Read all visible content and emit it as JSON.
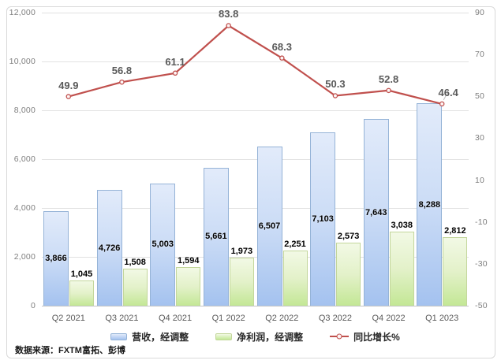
{
  "chart_data": {
    "type": "combo-bar-line",
    "title": "",
    "categories": [
      "Q2 2021",
      "Q3 2021",
      "Q4 2021",
      "Q1 2022",
      "Q2 2022",
      "Q3 2022",
      "Q4 2022",
      "Q1 2023"
    ],
    "series": [
      {
        "name": "营收，经调整",
        "type": "bar",
        "axis": "left",
        "values": [
          3866,
          4726,
          5003,
          5661,
          6507,
          7103,
          7643,
          8288
        ],
        "labels": [
          "3,866",
          "4,726",
          "5,003",
          "5,661",
          "6,507",
          "7,103",
          "7,643",
          "8,288"
        ]
      },
      {
        "name": "净利润，经调整",
        "type": "bar",
        "axis": "left",
        "values": [
          1045,
          1508,
          1594,
          1973,
          2251,
          2573,
          3038,
          2812
        ],
        "labels": [
          "1,045",
          "1,508",
          "1,594",
          "1,973",
          "2,251",
          "2,573",
          "3,038",
          "2,812"
        ]
      },
      {
        "name": "同比增长%",
        "type": "line",
        "axis": "right",
        "values": [
          49.9,
          56.8,
          61.1,
          83.8,
          68.3,
          50.3,
          52.8,
          46.4
        ],
        "labels": [
          "49.9",
          "56.8",
          "61.1",
          "83.8",
          "68.3",
          "50.3",
          "52.8",
          "46.4"
        ],
        "color": "#C0504D"
      }
    ],
    "left_axis": {
      "min": 0,
      "max": 12000,
      "step": 2000,
      "tick_labels": [
        "0",
        "2,000",
        "4,000",
        "6,000",
        "8,000",
        "10,000",
        "12,000"
      ]
    },
    "right_axis": {
      "min": -50,
      "max": 90,
      "step": 20,
      "tick_labels": [
        "-50",
        "-30",
        "-10",
        "10",
        "30",
        "50",
        "70",
        "90"
      ]
    },
    "grid": "horizontal",
    "legend_position": "bottom"
  },
  "legend": {
    "revenue": "营收，经调整",
    "profit": "净利润，经调整",
    "yoy": "同比增长%"
  },
  "source_note": "数据来源：FXTM富拓、彭博",
  "colors": {
    "line": "#C0504D",
    "bar_blue_border": "#95B3D7",
    "bar_blue_top": "#E2EBFA",
    "bar_blue_bottom": "#A4C2EF",
    "bar_green_border": "#C3D69B",
    "bar_green_top": "#F2F9E5",
    "bar_green_bottom": "#C3E795",
    "gridline": "#E2E2E2",
    "frame_border": "#D9D9D9",
    "axis_text": "#7F7F7F",
    "category_text": "#595959",
    "line_label_text": "#595959",
    "bar_label_text": "#000000"
  }
}
